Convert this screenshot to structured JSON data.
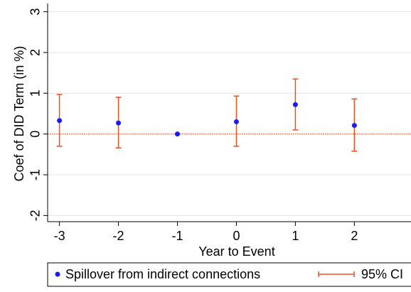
{
  "chart_data": {
    "type": "errorbar",
    "x_label": "Year to Event",
    "y_label": "Coef of DID Term (in %)",
    "x": [
      -3,
      -2,
      -1,
      0,
      1,
      2
    ],
    "series": [
      {
        "name": "Spillover from indirect connections",
        "color": "#1a1aff",
        "values": [
          0.33,
          0.27,
          0,
          0.3,
          0.72,
          0.21
        ]
      },
      {
        "name": "95% CI",
        "color": "#e8501e",
        "lower": [
          -0.3,
          -0.34,
          null,
          -0.3,
          0.1,
          -0.42
        ],
        "upper": [
          0.97,
          0.9,
          null,
          0.93,
          1.35,
          0.86
        ]
      }
    ],
    "xlim": [
      -3.2,
      2.96
    ],
    "xticks": [
      -3,
      -2,
      -1,
      0,
      1,
      2
    ],
    "ylim": [
      -2.15,
      3.2
    ],
    "yticks": [
      -2,
      -1,
      0,
      1,
      2,
      3
    ],
    "grid": true,
    "reference_line": 0,
    "legend": "bottom"
  }
}
